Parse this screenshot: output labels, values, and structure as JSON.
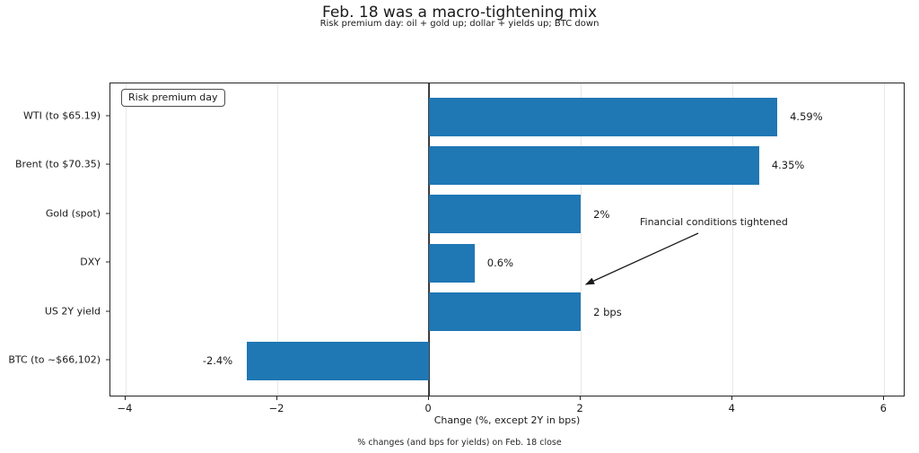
{
  "figure": {
    "title": "Feb. 18 was a macro-tightening mix",
    "subtitle": "Risk premium day: oil + gold up; dollar + yields up; BTC down",
    "footer": "% changes (and bps for yields) on Feb. 18 close"
  },
  "legend": {
    "label": "Risk premium day"
  },
  "annotation": {
    "text": "Financial conditions tightened"
  },
  "colors": {
    "bar": "#1f77b4",
    "grid": "#e8e8e8",
    "zero_line": "#3d3d3d",
    "text": "#1a1a1a"
  },
  "chart_data": {
    "type": "bar",
    "orientation": "horizontal",
    "title": "Feb. 18 was a macro-tightening mix",
    "subtitle": "Risk premium day: oil + gold up; dollar + yields up; BTC down",
    "categories": [
      "WTI (to $65.19)",
      "Brent (to $70.35)",
      "Gold (spot)",
      "DXY",
      "US 2Y yield",
      "BTC (to ~$66,102)"
    ],
    "values": [
      4.59,
      4.35,
      2,
      0.6,
      2,
      -2.4
    ],
    "value_labels": [
      "4.59%",
      "4.35%",
      "2%",
      "0.6%",
      "2 bps",
      "-2.4%"
    ],
    "xlabel": "Change (%, except 2Y in bps)",
    "xticks": [
      -4,
      -2,
      0,
      2,
      4,
      6
    ],
    "xtick_labels": [
      "−4",
      "−2",
      "0",
      "2",
      "4",
      "6"
    ],
    "xlim": [
      -4.2,
      6.28
    ],
    "grid": true,
    "legend_label": "Risk premium day",
    "legend_position": "upper left",
    "annotation": "Financial conditions tightened",
    "caption": "% changes (and bps for yields) on Feb. 18 close"
  }
}
